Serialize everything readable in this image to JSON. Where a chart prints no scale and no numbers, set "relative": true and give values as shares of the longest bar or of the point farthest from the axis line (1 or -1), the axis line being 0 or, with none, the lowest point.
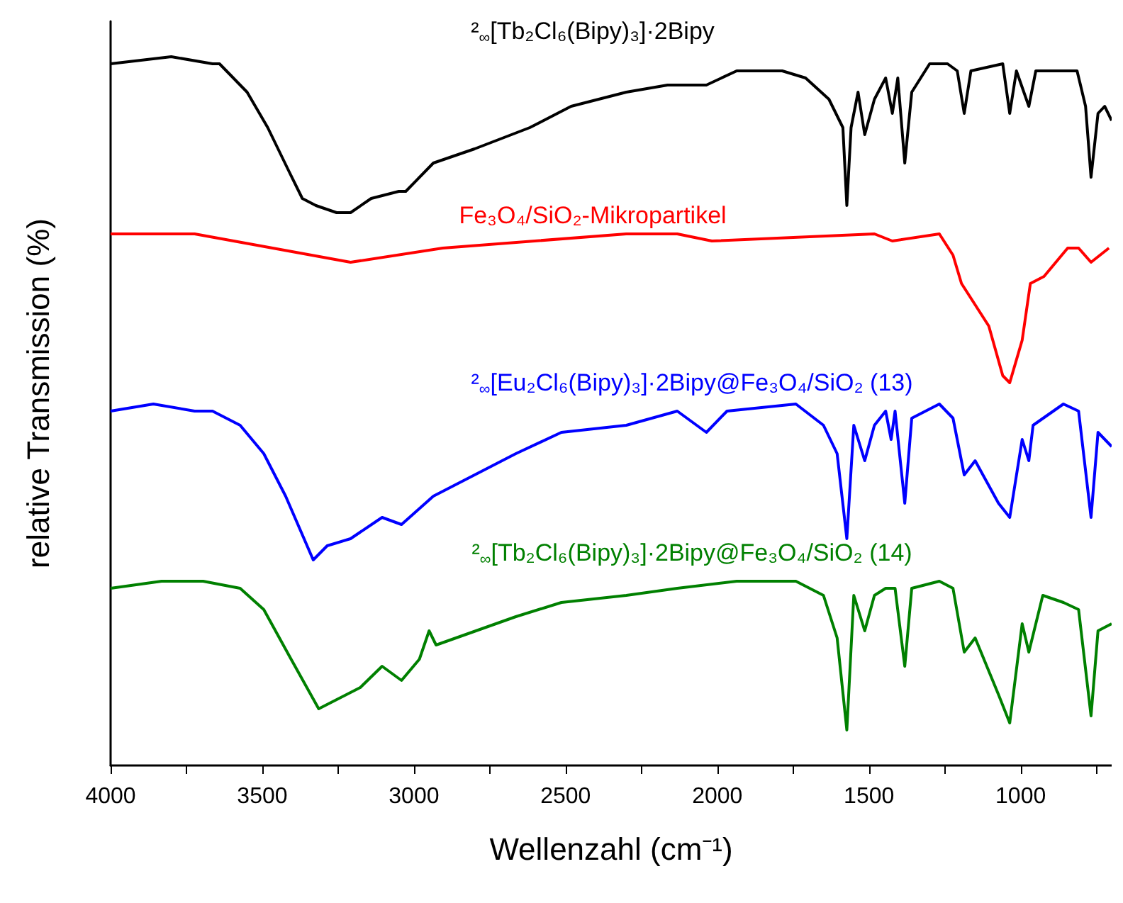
{
  "chart_data": {
    "type": "line",
    "xlabel": "Wellenzahl (cm⁻¹)",
    "ylabel": "relative Transmission (%)",
    "relative": true,
    "xlim": [
      4000,
      700
    ],
    "xticks": [
      4000,
      {
        "value": 3750,
        "label": null
      },
      3500,
      {
        "value": 3250,
        "label": null
      },
      3000,
      {
        "value": 2750,
        "label": null
      },
      2500,
      {
        "value": 2250,
        "label": null
      },
      2000,
      {
        "value": 1750,
        "label": null
      },
      1500,
      {
        "value": 1250,
        "label": null
      },
      1000,
      {
        "value": 750,
        "label": null
      }
    ],
    "series": [
      {
        "name": "²$_{∞}$[Tb₂Cl₆(Bipy)₃]·2Bipy",
        "color": "#000000",
        "x": [
          4000,
          3800,
          3664,
          3641,
          3550,
          3482,
          3414,
          3368,
          3323,
          3255,
          3209,
          3141,
          3050,
          3027,
          2936,
          2800,
          2618,
          2482,
          2391,
          2300,
          2164,
          2036,
          1936,
          1786,
          1709,
          1632,
          1586,
          1573,
          1559,
          1536,
          1514,
          1482,
          1445,
          1423,
          1405,
          1382,
          1359,
          1300,
          1241,
          1209,
          1186,
          1164,
          1059,
          1036,
          1014,
          973,
          950,
          814,
          786,
          768,
          745,
          723,
          700
        ],
        "values": [
          0.99,
          1.0,
          0.99,
          0.99,
          0.95,
          0.9,
          0.84,
          0.8,
          0.79,
          0.78,
          0.78,
          0.8,
          0.81,
          0.81,
          0.85,
          0.87,
          0.9,
          0.93,
          0.94,
          0.95,
          0.96,
          0.96,
          0.98,
          0.98,
          0.97,
          0.94,
          0.9,
          0.79,
          0.9,
          0.95,
          0.89,
          0.94,
          0.97,
          0.92,
          0.97,
          0.85,
          0.95,
          0.99,
          0.99,
          0.98,
          0.92,
          0.98,
          0.99,
          0.92,
          0.98,
          0.93,
          0.98,
          0.98,
          0.93,
          0.83,
          0.92,
          0.93,
          0.91
        ]
      },
      {
        "name": "Fe₃O₄/SiO₂-Mikropartikel",
        "color": "#ff0000",
        "x": [
          4000,
          3723,
          3209,
          2905,
          2300,
          2132,
          2018,
          1482,
          1423,
          1268,
          1223,
          1195,
          1105,
          1059,
          1036,
          995,
          968,
          923,
          845,
          809,
          768,
          709
        ],
        "values": [
          0.75,
          0.75,
          0.71,
          0.73,
          0.75,
          0.75,
          0.74,
          0.75,
          0.74,
          0.75,
          0.72,
          0.68,
          0.62,
          0.55,
          0.54,
          0.6,
          0.68,
          0.69,
          0.73,
          0.73,
          0.71,
          0.73
        ]
      },
      {
        "name": "²$_{∞}$[Eu₂Cl₆(Bipy)₃]·2Bipy@Fe₃O₄/SiO₂ (13)",
        "color": "#0000ff",
        "x": [
          4000,
          3859,
          3723,
          3664,
          3573,
          3495,
          3423,
          3332,
          3286,
          3209,
          3105,
          3041,
          2936,
          2664,
          2514,
          2300,
          2132,
          2036,
          1968,
          1741,
          1650,
          1605,
          1573,
          1550,
          1514,
          1482,
          1445,
          1427,
          1414,
          1382,
          1359,
          1268,
          1223,
          1186,
          1150,
          1073,
          1036,
          995,
          973,
          959,
          859,
          809,
          768,
          745,
          700
        ],
        "values": [
          0.5,
          0.51,
          0.5,
          0.5,
          0.48,
          0.44,
          0.38,
          0.29,
          0.31,
          0.32,
          0.35,
          0.34,
          0.38,
          0.44,
          0.47,
          0.48,
          0.5,
          0.47,
          0.5,
          0.51,
          0.48,
          0.44,
          0.32,
          0.48,
          0.43,
          0.48,
          0.5,
          0.46,
          0.5,
          0.37,
          0.49,
          0.51,
          0.49,
          0.41,
          0.43,
          0.37,
          0.35,
          0.46,
          0.43,
          0.48,
          0.51,
          0.5,
          0.35,
          0.47,
          0.45
        ]
      },
      {
        "name": "²$_{∞}$[Tb₂Cl₆(Bipy)₃]·2Bipy@Fe₃O₄/SiO₂ (14)",
        "color": "#008000",
        "x": [
          4000,
          3832,
          3695,
          3573,
          3495,
          3405,
          3314,
          3177,
          3105,
          3041,
          2982,
          2950,
          2927,
          2664,
          2514,
          2300,
          2132,
          1936,
          1741,
          1650,
          1605,
          1573,
          1550,
          1514,
          1482,
          1445,
          1414,
          1382,
          1359,
          1268,
          1223,
          1186,
          1150,
          1073,
          1036,
          995,
          973,
          927,
          859,
          809,
          768,
          745,
          700
        ],
        "values": [
          0.25,
          0.26,
          0.26,
          0.25,
          0.22,
          0.15,
          0.08,
          0.11,
          0.14,
          0.12,
          0.15,
          0.19,
          0.17,
          0.21,
          0.23,
          0.24,
          0.25,
          0.26,
          0.26,
          0.24,
          0.18,
          0.05,
          0.24,
          0.19,
          0.24,
          0.25,
          0.25,
          0.14,
          0.25,
          0.26,
          0.25,
          0.16,
          0.18,
          0.1,
          0.06,
          0.2,
          0.16,
          0.24,
          0.23,
          0.22,
          0.07,
          0.19,
          0.2
        ]
      }
    ]
  }
}
